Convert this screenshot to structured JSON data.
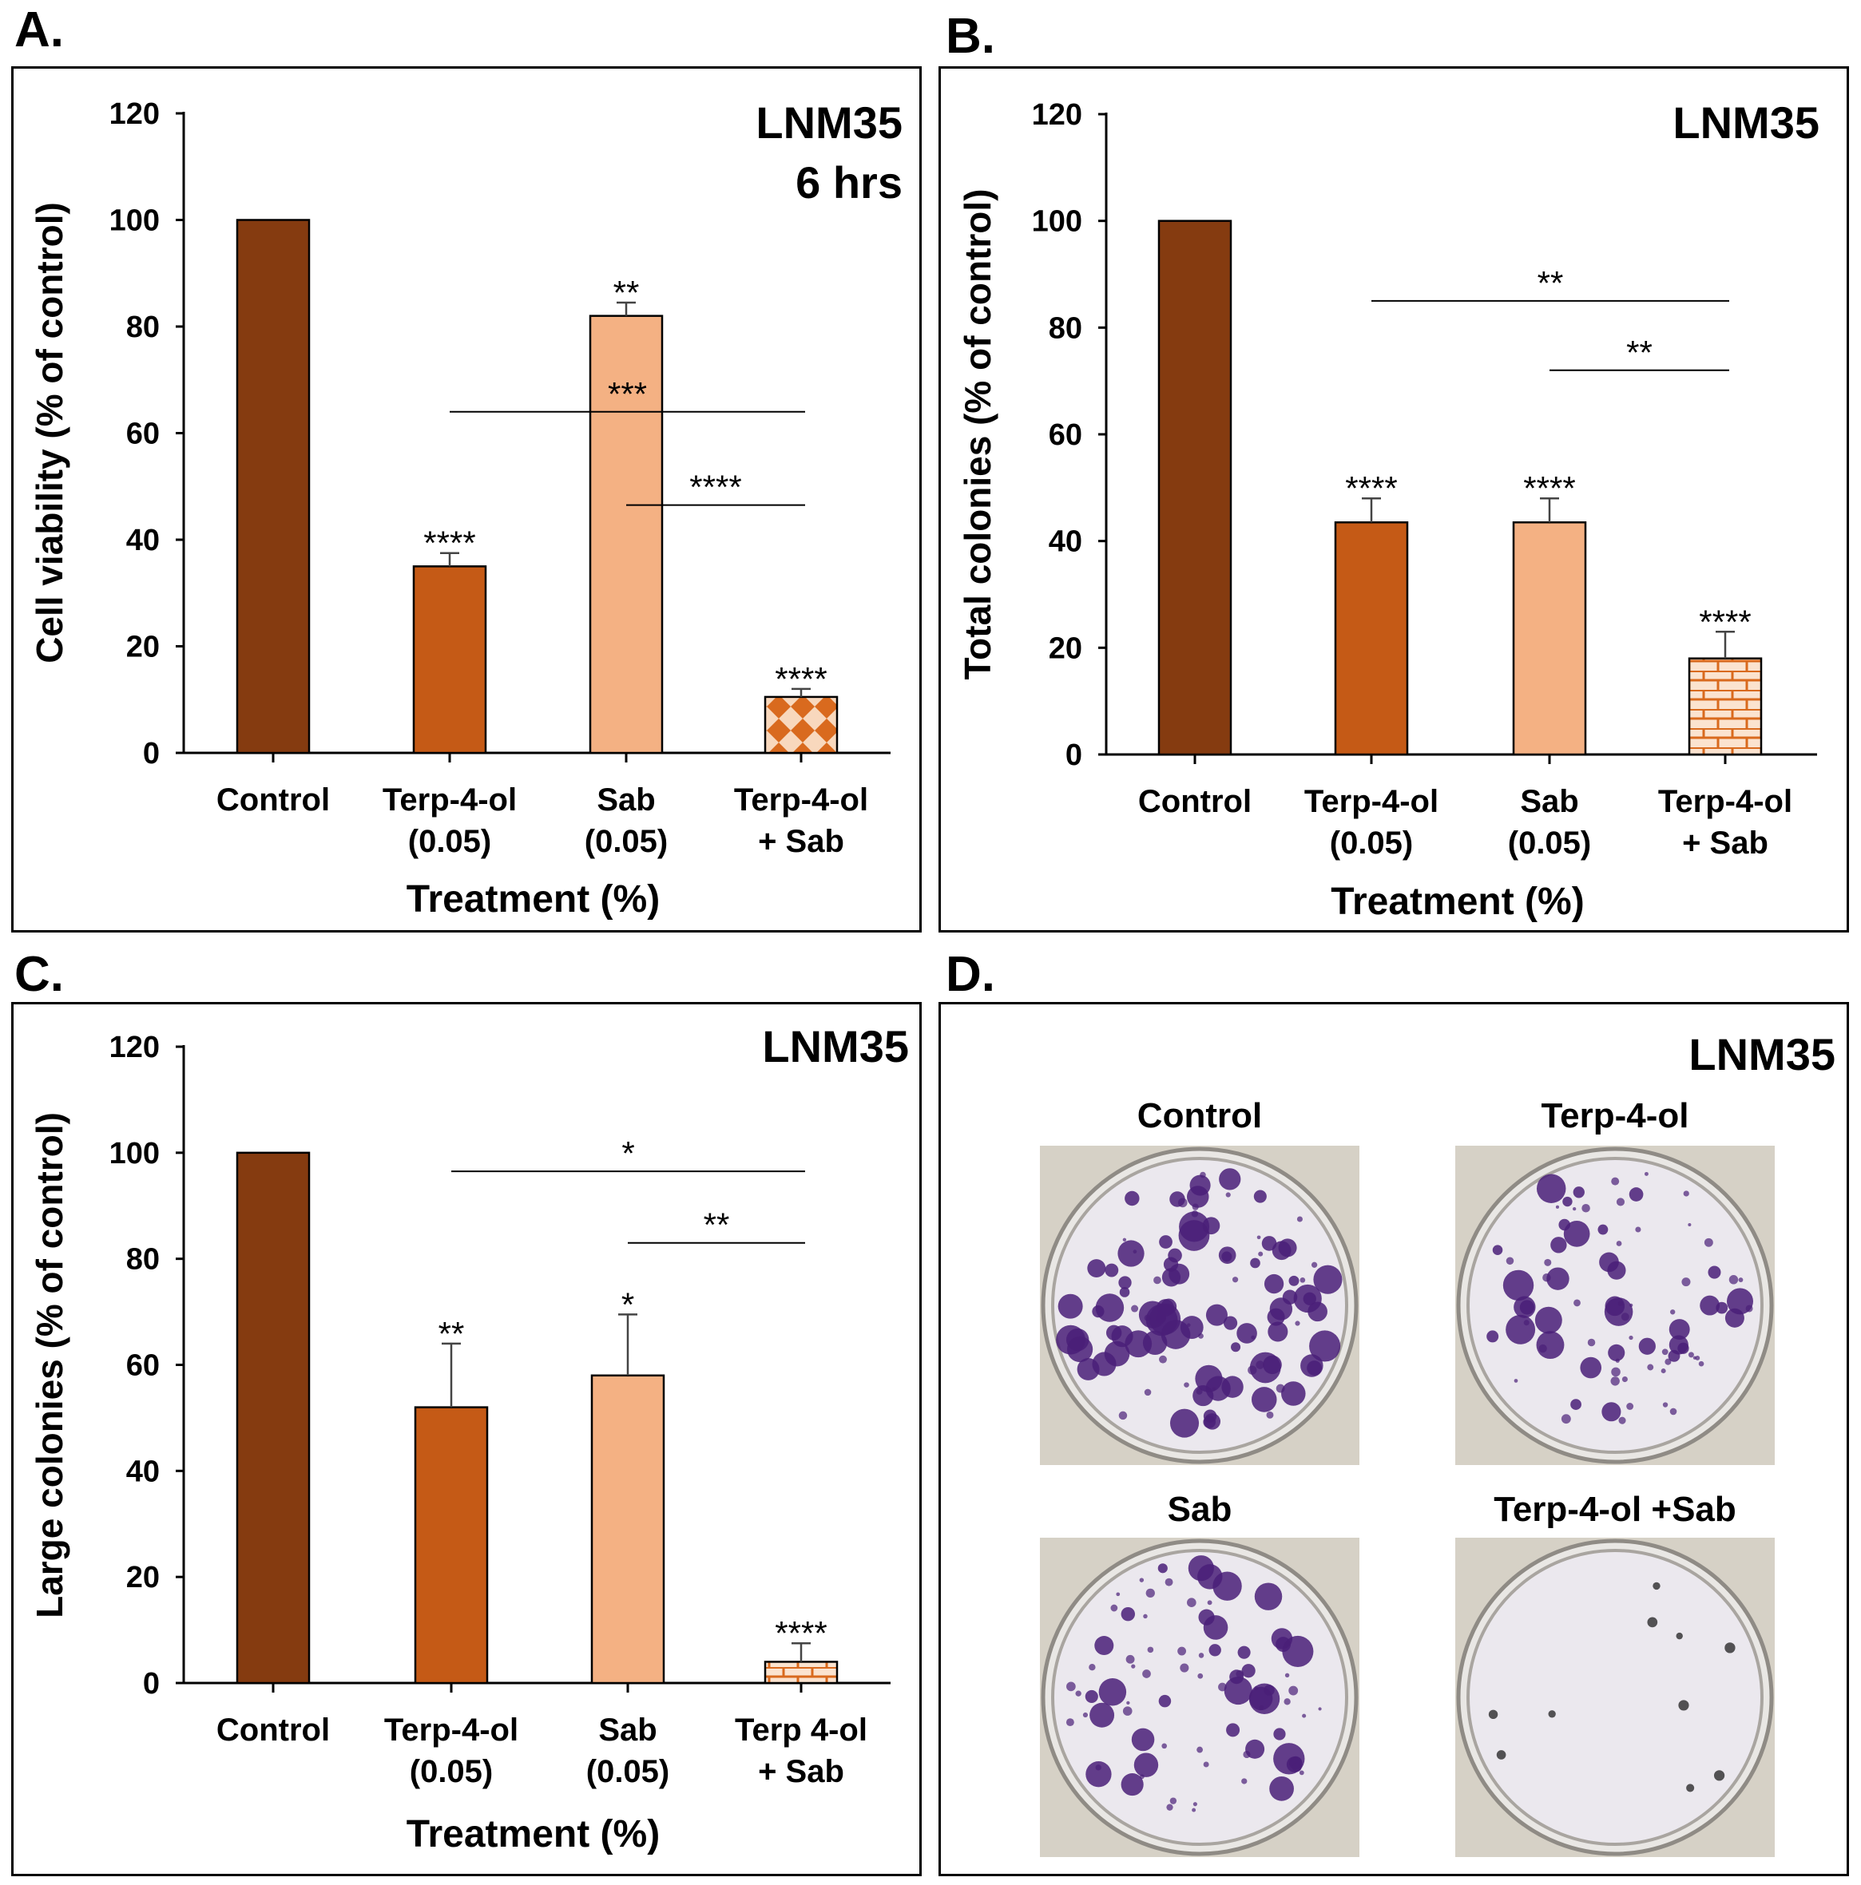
{
  "colors": {
    "control": "#853b10",
    "terp": "#c55a16",
    "sab": "#f4b183",
    "combo_fill": "#f8d8bd",
    "combo_pattern": "#d96a1e",
    "stain": "#4a1f78",
    "dish_bg": "#d6d1c6"
  },
  "panels": {
    "A": "A.",
    "B": "B.",
    "C": "C.",
    "D": "D."
  },
  "chart_data": [
    {
      "id": "A",
      "type": "bar",
      "title": [
        "LNM35",
        "6 hrs"
      ],
      "ylabel": "Cell viability (% of control)",
      "xlabel": "Treatment (%)",
      "ylim": [
        0,
        120
      ],
      "yticks": [
        0,
        20,
        40,
        60,
        80,
        100,
        120
      ],
      "categories": [
        [
          "Control"
        ],
        [
          "Terp-4-ol",
          "(0.05)"
        ],
        [
          "Sab",
          "(0.05)"
        ],
        [
          "Terp-4-ol",
          "+ Sab"
        ]
      ],
      "values": [
        100,
        35,
        82,
        10.5
      ],
      "errors": [
        0,
        2.5,
        2.5,
        1.5
      ],
      "fills": [
        "control",
        "terp",
        "sab",
        "diamond"
      ],
      "bar_labels": [
        "",
        "****",
        "**",
        "****"
      ],
      "brackets": [
        {
          "from": 1,
          "to": 3,
          "y": 64,
          "label": "***"
        },
        {
          "from": 2,
          "to": 3,
          "y": 46.5,
          "label": "****"
        }
      ]
    },
    {
      "id": "B",
      "type": "bar",
      "title": [
        "LNM35"
      ],
      "ylabel": "Total colonies (% of control)",
      "xlabel": "Treatment (%)",
      "ylim": [
        0,
        120
      ],
      "yticks": [
        0,
        20,
        40,
        60,
        80,
        100,
        120
      ],
      "categories": [
        [
          "Control"
        ],
        [
          "Terp-4-ol",
          "(0.05)"
        ],
        [
          "Sab",
          "(0.05)"
        ],
        [
          "Terp-4-ol",
          "+ Sab"
        ]
      ],
      "values": [
        100,
        43.5,
        43.5,
        18
      ],
      "errors": [
        0,
        4.5,
        4.5,
        5
      ],
      "fills": [
        "control",
        "terp",
        "sab",
        "brick"
      ],
      "bar_labels": [
        "",
        "****",
        "****",
        "****"
      ],
      "brackets": [
        {
          "from": 1,
          "to": 3,
          "y": 85,
          "label": "**"
        },
        {
          "from": 2,
          "to": 3,
          "y": 72,
          "label": "**"
        }
      ]
    },
    {
      "id": "C",
      "type": "bar",
      "title": [
        "LNM35"
      ],
      "ylabel": "Large colonies (% of control)",
      "xlabel": "Treatment (%)",
      "ylim": [
        0,
        120
      ],
      "yticks": [
        0,
        20,
        40,
        60,
        80,
        100,
        120
      ],
      "categories": [
        [
          "Control"
        ],
        [
          "Terp-4-ol",
          "(0.05)"
        ],
        [
          "Sab",
          "(0.05)"
        ],
        [
          "Terp 4-ol",
          "+ Sab"
        ]
      ],
      "values": [
        100,
        52,
        58,
        4
      ],
      "errors": [
        0,
        12,
        11.5,
        3.5
      ],
      "fills": [
        "control",
        "terp",
        "sab",
        "brick"
      ],
      "bar_labels": [
        "",
        "**",
        "*",
        "****"
      ],
      "brackets": [
        {
          "from": 1,
          "to": 3,
          "y": 96.5,
          "label": "*"
        },
        {
          "from": 2,
          "to": 3,
          "y": 83,
          "label": "**"
        }
      ]
    }
  ],
  "panel_d": {
    "title": "LNM35",
    "dishes": [
      {
        "label": "Control",
        "density": "high"
      },
      {
        "label": "Terp-4-ol",
        "density": "medium"
      },
      {
        "label": "Sab",
        "density": "medium"
      },
      {
        "label": "Terp-4-ol +Sab",
        "density": "low"
      }
    ]
  }
}
